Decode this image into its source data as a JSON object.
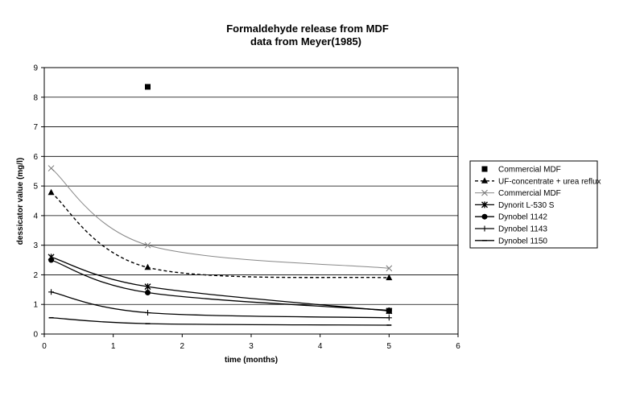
{
  "chart_data": {
    "type": "line",
    "title": "Formaldehyde release from MDF",
    "subtitle": "data from Meyer(1985)",
    "xlabel": "time (months)",
    "ylabel": "dessicator value (mg/l)",
    "xlim": [
      0,
      6
    ],
    "ylim": [
      0,
      9
    ],
    "xticks": [
      "0",
      "1",
      "2",
      "3",
      "4",
      "5",
      "6"
    ],
    "yticks": [
      "0",
      "1",
      "2",
      "3",
      "4",
      "5",
      "6",
      "7",
      "8",
      "9"
    ],
    "grid": "horizontal",
    "legend_position": "right",
    "series": [
      {
        "name": "Commercial MDF",
        "marker": "square",
        "line": "none",
        "color": "#000000",
        "points": [
          [
            1.5,
            8.35
          ],
          [
            5,
            0.78
          ]
        ]
      },
      {
        "name": "UF-concentrate + urea reflux",
        "marker": "triangle",
        "line": "dashed",
        "color": "#000000",
        "points": [
          [
            0.1,
            4.78
          ],
          [
            1.5,
            2.25
          ],
          [
            5,
            1.9
          ]
        ]
      },
      {
        "name": "Commercial MDF",
        "marker": "x",
        "line": "solid-thin",
        "color": "#777777",
        "points": [
          [
            0.1,
            5.6
          ],
          [
            1.5,
            3.0
          ],
          [
            5,
            2.22
          ]
        ]
      },
      {
        "name": "Dynorit L-530 S",
        "marker": "star",
        "line": "solid",
        "color": "#000000",
        "points": [
          [
            0.1,
            2.6
          ],
          [
            1.5,
            1.6
          ],
          [
            5,
            0.78
          ]
        ]
      },
      {
        "name": "Dynobel 1142",
        "marker": "circle",
        "line": "solid",
        "color": "#000000",
        "points": [
          [
            0.1,
            2.5
          ],
          [
            1.5,
            1.4
          ],
          [
            5,
            0.8
          ]
        ]
      },
      {
        "name": "Dynobel 1143",
        "marker": "plus",
        "line": "solid",
        "color": "#000000",
        "points": [
          [
            0.1,
            1.42
          ],
          [
            1.5,
            0.72
          ],
          [
            5,
            0.55
          ]
        ]
      },
      {
        "name": "Dynobel 1150",
        "marker": "dash",
        "line": "solid",
        "color": "#000000",
        "points": [
          [
            0.1,
            0.55
          ],
          [
            1.5,
            0.35
          ],
          [
            5,
            0.3
          ]
        ]
      }
    ]
  }
}
